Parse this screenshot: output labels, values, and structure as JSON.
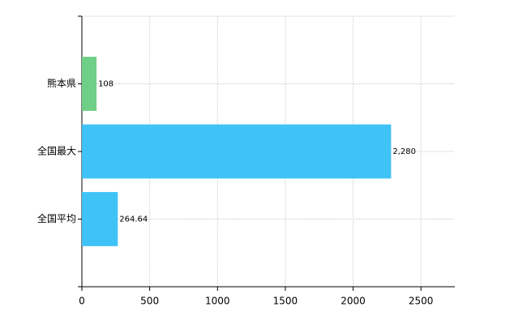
{
  "chart_data": {
    "type": "bar",
    "orientation": "horizontal",
    "categories": [
      "熊本県",
      "全国最大",
      "全国平均"
    ],
    "values": [
      108,
      2280,
      264.64
    ],
    "value_labels": [
      "108",
      "2,280",
      "264.64"
    ],
    "colors": [
      "#6fcf86",
      "#3fc3f7",
      "#3fc3f7"
    ],
    "xlim": [
      0,
      2750
    ],
    "xticks": [
      0,
      500,
      1000,
      1500,
      2000,
      2500
    ],
    "grid": true
  }
}
